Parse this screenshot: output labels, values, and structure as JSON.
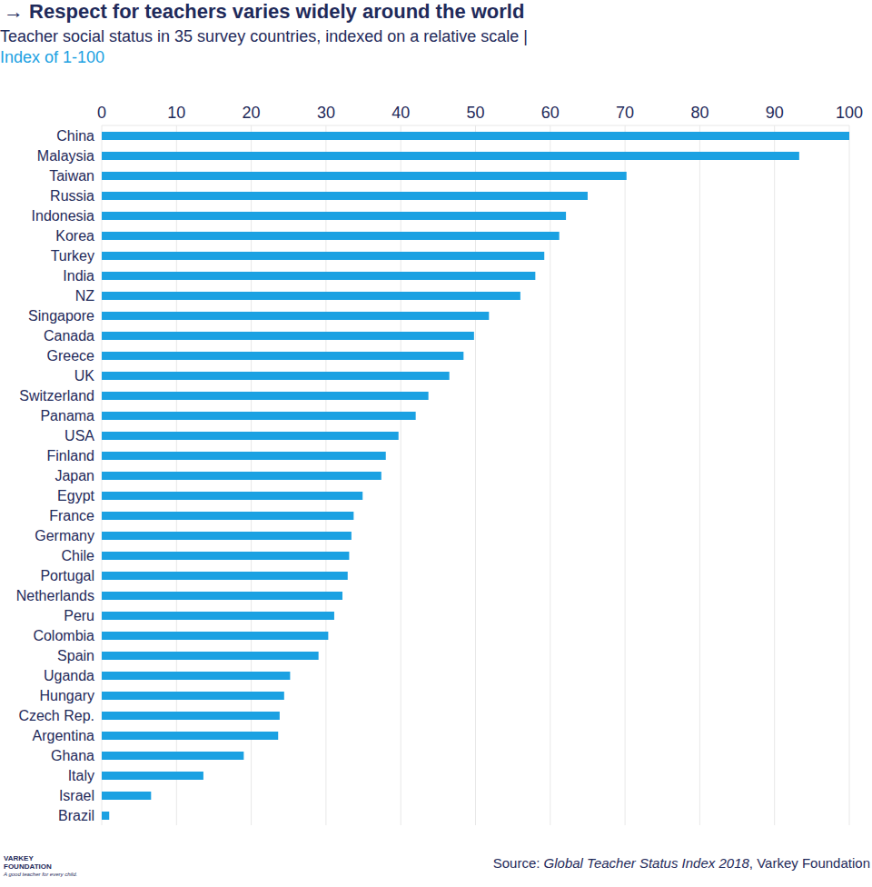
{
  "chart_data": {
    "type": "bar",
    "orientation": "horizontal",
    "title": "→ Respect for teachers varies widely around the world",
    "subtitle": "Teacher social status in 35 survey countries, indexed on a relative scale |",
    "subtitle2": "Index of 1-100",
    "categories": [
      "China",
      "Malaysia",
      "Taiwan",
      "Russia",
      "Indonesia",
      "Korea",
      "Turkey",
      "India",
      "NZ",
      "Singapore",
      "Canada",
      "Greece",
      "UK",
      "Switzerland",
      "Panama",
      "USA",
      "Finland",
      "Japan",
      "Egypt",
      "France",
      "Germany",
      "Chile",
      "Portugal",
      "Netherlands",
      "Peru",
      "Colombia",
      "Spain",
      "Uganda",
      "Hungary",
      "Czech Rep.",
      "Argentina",
      "Ghana",
      "Italy",
      "Israel",
      "Brazil"
    ],
    "values": [
      100,
      93.3,
      70.2,
      65,
      62.1,
      61.2,
      59.2,
      58,
      56,
      51.8,
      49.8,
      48.4,
      46.5,
      43.7,
      42,
      39.7,
      38,
      37.4,
      34.9,
      33.7,
      33.4,
      33.1,
      32.9,
      32.2,
      31.1,
      30.3,
      29,
      25.2,
      24.4,
      23.8,
      23.6,
      19,
      13.6,
      6.6,
      1
    ],
    "color": "#1ba1e2",
    "xlim": [
      0,
      100
    ],
    "xticks": [
      0,
      10,
      20,
      30,
      40,
      50,
      60,
      70,
      80,
      90,
      100
    ],
    "grid": true,
    "source": {
      "prefix": "Source: ",
      "title": "Global Teacher Status Index 2018",
      "suffix": ", Varkey Foundation"
    },
    "logo": {
      "name": [
        "VARKEY",
        "FOUNDATION"
      ],
      "tagline": "A good teacher for every child."
    }
  }
}
